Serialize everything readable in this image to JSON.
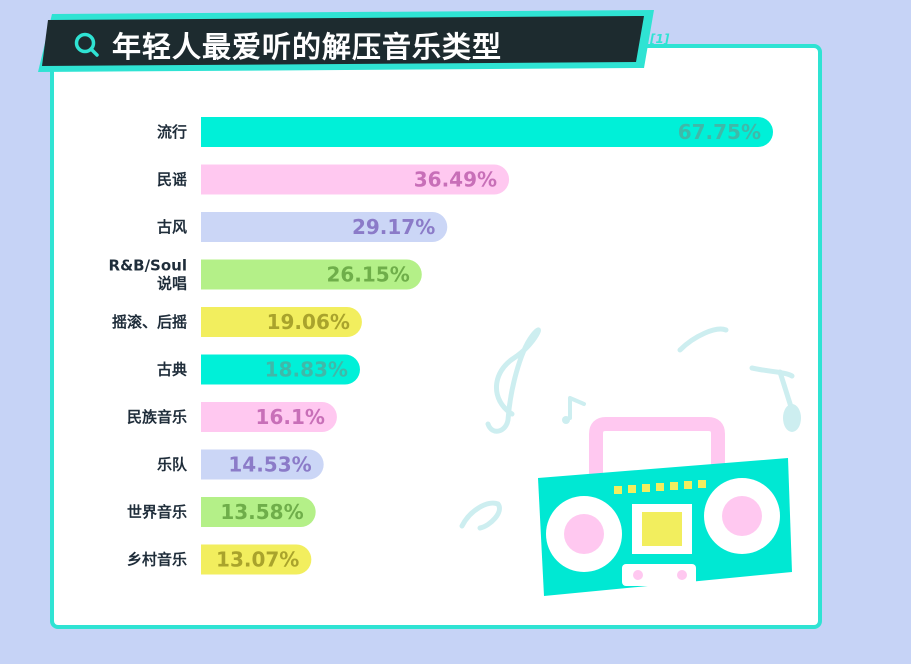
{
  "title": "年轻人最爱听的解压音乐类型",
  "title_ref": "[1]",
  "icons": {
    "title_icon": "search-icon",
    "decoration": "boombox-icon"
  },
  "colors": {
    "cyan": "#00f0d8",
    "pink": "#ffc8f0",
    "lavender": "#cbd6f6",
    "green": "#b4f088",
    "yellow": "#f2ee5e"
  },
  "chart_data": {
    "type": "bar",
    "orientation": "horizontal",
    "title": "年轻人最爱听的解压音乐类型",
    "categories": [
      [
        "流行"
      ],
      [
        "民谣"
      ],
      [
        "古风"
      ],
      [
        "R&B/Soul",
        "说唱"
      ],
      [
        "摇滚、后摇"
      ],
      [
        "古典"
      ],
      [
        "民族音乐"
      ],
      [
        "乐队"
      ],
      [
        "世界音乐"
      ],
      [
        "乡村音乐"
      ]
    ],
    "values": [
      67.75,
      36.49,
      29.17,
      26.15,
      19.06,
      18.83,
      16.1,
      14.53,
      13.58,
      13.07
    ],
    "value_labels": [
      "67.75%",
      "36.49%",
      "29.17%",
      "26.15%",
      "19.06%",
      "18.83%",
      "16.1%",
      "14.53%",
      "13.58%",
      "13.07%"
    ],
    "bar_colors": [
      "#00f0d8",
      "#ffc8f0",
      "#cbd6f6",
      "#b4f088",
      "#f2ee5e",
      "#00f0d8",
      "#ffc8f0",
      "#cbd6f6",
      "#b4f088",
      "#f2ee5e"
    ],
    "label_colors": [
      "#3fb9a9",
      "#c86fb8",
      "#8b7bc8",
      "#6fae4a",
      "#a9a32c",
      "#3fb9a9",
      "#c86fb8",
      "#8b7bc8",
      "#6fae4a",
      "#a9a32c"
    ],
    "xlim": [
      0,
      70
    ],
    "grid": false,
    "legend": "none"
  }
}
